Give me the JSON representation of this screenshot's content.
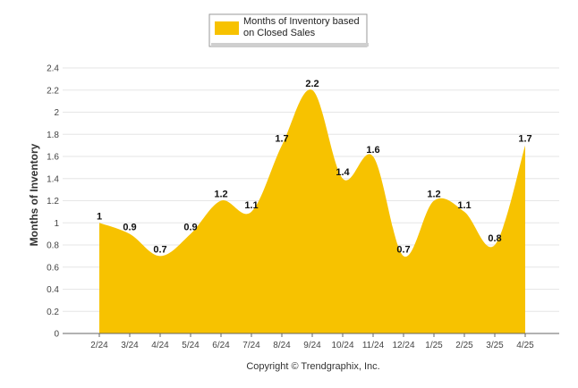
{
  "chart_data": {
    "type": "area",
    "categories": [
      "2/24",
      "3/24",
      "4/24",
      "5/24",
      "6/24",
      "7/24",
      "8/24",
      "9/24",
      "10/24",
      "11/24",
      "12/24",
      "1/25",
      "2/25",
      "3/25",
      "4/25"
    ],
    "series": [
      {
        "name": "Months of Inventory based on Closed Sales",
        "values": [
          1,
          0.9,
          0.7,
          0.9,
          1.2,
          1.1,
          1.7,
          2.2,
          1.4,
          1.6,
          0.7,
          1.2,
          1.1,
          0.8,
          1.7
        ],
        "labels": [
          "1",
          "0.9",
          "0.7",
          "0.9",
          "1.2",
          "1.1",
          "1.7",
          "2.2",
          "1.4",
          "1.6",
          "0.7",
          "1.2",
          "1.1",
          "0.8",
          "1.7"
        ],
        "color": "#F7C200"
      }
    ],
    "legend": {
      "position": "top-center",
      "lines": [
        "Months of Inventory based",
        "on Closed Sales"
      ]
    },
    "ylabel": "Months of Inventory",
    "ylim": [
      0,
      2.4
    ],
    "yticks": [
      "0",
      "0.2",
      "0.4",
      "0.6",
      "0.8",
      "1",
      "1.2",
      "1.4",
      "1.6",
      "1.8",
      "2",
      "2.2",
      "2.4"
    ],
    "grid": true,
    "credit": "Copyright © Trendgraphix, Inc."
  }
}
